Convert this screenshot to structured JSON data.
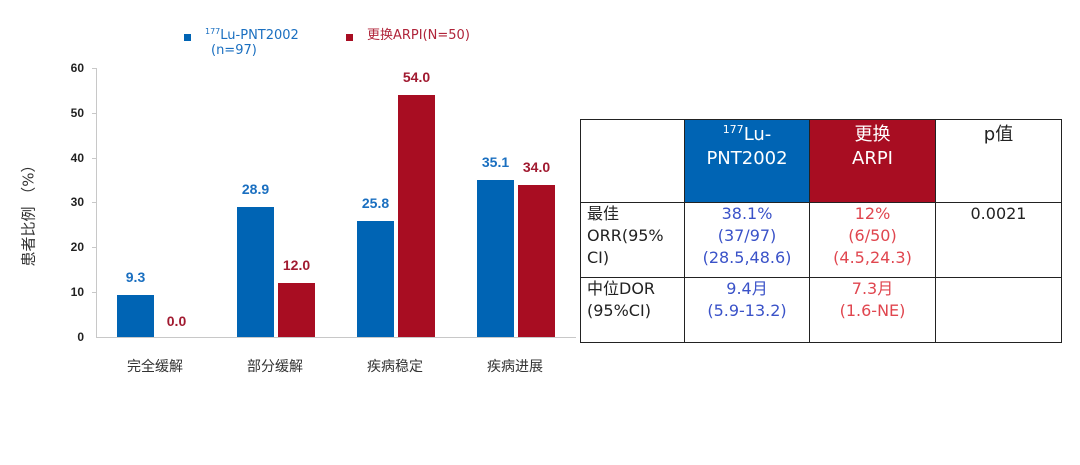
{
  "colors": {
    "drug": "#0064B4",
    "arpi": "#A80D22",
    "drug_text_table": "#3A52C8",
    "arpi_text_table": "#E0464F",
    "axis": "#c8c8c8"
  },
  "legend": {
    "drug": {
      "sup": "177",
      "name": "Lu-PNT2002",
      "n": "(n=97)"
    },
    "arpi": {
      "label": "更换ARPI(N=50)"
    }
  },
  "chart_data": {
    "type": "bar",
    "title": "",
    "xlabel": "",
    "ylabel": "患者比例  （%）",
    "ylim": [
      0,
      60
    ],
    "yticks": [
      "0",
      "10",
      "20",
      "30",
      "40",
      "50",
      "60"
    ],
    "categories": [
      "完全缓解",
      "部分缓解",
      "疾病稳定",
      "疾病进展"
    ],
    "series": [
      {
        "name": "177Lu-PNT2002 (n=97)",
        "values": [
          9.3,
          28.9,
          25.8,
          35.1
        ],
        "labels": [
          "9.3",
          "28.9",
          "25.8",
          "35.1"
        ]
      },
      {
        "name": "更换ARPI(N=50)",
        "values": [
          0.0,
          12.0,
          54.0,
          34.0
        ],
        "labels": [
          "0.0",
          "12.0",
          "54.0",
          "34.0"
        ]
      }
    ],
    "grid": false,
    "legend_position": "top"
  },
  "table": {
    "headers": {
      "empty": "",
      "drug_sup": "177",
      "drug_line1": "Lu-",
      "drug_line2": "PNT2002",
      "arpi_line1": "更换",
      "arpi_line2": "ARPI",
      "p": "p值"
    },
    "rows": [
      {
        "label_lines": [
          "最佳",
          "ORR(95%",
          "CI)"
        ],
        "drug_lines": [
          "38.1%",
          "(37/97)",
          "(28.5,48.6)"
        ],
        "arpi_lines": [
          "12%",
          "(6/50)",
          "(4.5,24.3)"
        ],
        "p": "0.0021"
      },
      {
        "label_lines": [
          "中位DOR",
          "(95%CI)"
        ],
        "drug_lines": [
          "9.4月",
          "(5.9-13.2)"
        ],
        "arpi_lines": [
          "7.3月",
          "(1.6-NE)"
        ],
        "p": ""
      }
    ]
  }
}
